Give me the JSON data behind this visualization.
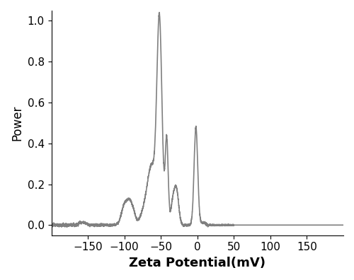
{
  "xlabel": "Zeta Potential(mV)",
  "ylabel": "Power",
  "xlim": [
    -200,
    200
  ],
  "ylim": [
    -0.05,
    1.05
  ],
  "xticks": [
    -150,
    -100,
    -50,
    0,
    50,
    100,
    150
  ],
  "yticks": [
    0.0,
    0.2,
    0.4,
    0.6,
    0.8,
    1.0
  ],
  "line_color": "#808080",
  "line_width": 1.2,
  "bg_color": "#ffffff",
  "xlabel_fontsize": 13,
  "ylabel_fontsize": 12,
  "tick_fontsize": 11
}
